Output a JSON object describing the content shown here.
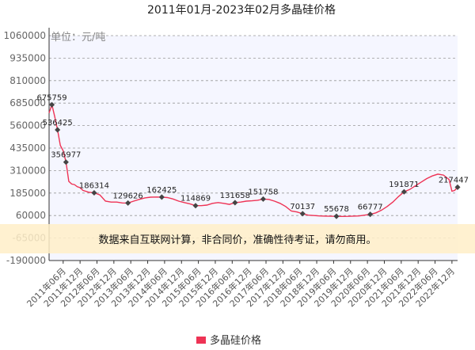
{
  "chart_data": {
    "type": "line",
    "title": "2011年01月-2023年02月多晶硅价格",
    "unit_label": "单位：元/吨",
    "ylabel": "",
    "xlabel": "",
    "yticks": [
      1060000,
      935000,
      810000,
      685000,
      560000,
      435000,
      310000,
      185000,
      60000,
      -65000,
      -190000
    ],
    "ytick_labels": [
      "1060000",
      "935000",
      "810000",
      "685000",
      "560000",
      "435000",
      "310000",
      "185000",
      "60000",
      "-65000",
      "-190000"
    ],
    "ylim": [
      -190000,
      1060000
    ],
    "grid": true,
    "x_ticks": [
      "2011年06月",
      "2011年12月",
      "2012年06月",
      "2012年12月",
      "2013年06月",
      "2013年12月",
      "2014年06月",
      "2014年12月",
      "2015年06月",
      "2015年12月",
      "2016年06月",
      "2016年12月",
      "2017年06月",
      "2017年12月",
      "2018年06月",
      "2018年12月",
      "2019年06月",
      "2019年12月",
      "2020年06月",
      "2020年12月",
      "2021年06月",
      "2021年12月",
      "2022年06月",
      "2022年12月"
    ],
    "series": [
      {
        "name": "多晶硅价格",
        "color": "#ee3355",
        "points": [
          [
            "2011-01",
            630000
          ],
          [
            "2011-02",
            675759
          ],
          [
            "2011-03",
            610000
          ],
          [
            "2011-04",
            536425
          ],
          [
            "2011-05",
            450000
          ],
          [
            "2011-06",
            420000
          ],
          [
            "2011-07",
            356977
          ],
          [
            "2011-08",
            250000
          ],
          [
            "2011-09",
            235000
          ],
          [
            "2011-10",
            232000
          ],
          [
            "2011-11",
            220000
          ],
          [
            "2011-12",
            215000
          ],
          [
            "2012-01",
            200000
          ],
          [
            "2012-03",
            190000
          ],
          [
            "2012-05",
            186314
          ],
          [
            "2012-07",
            175000
          ],
          [
            "2012-09",
            140000
          ],
          [
            "2012-11",
            135000
          ],
          [
            "2013-01",
            135000
          ],
          [
            "2013-03",
            130000
          ],
          [
            "2013-05",
            129626
          ],
          [
            "2013-07",
            140000
          ],
          [
            "2013-09",
            150000
          ],
          [
            "2013-11",
            158000
          ],
          [
            "2014-01",
            162000
          ],
          [
            "2014-03",
            163000
          ],
          [
            "2014-05",
            162425
          ],
          [
            "2014-07",
            160000
          ],
          [
            "2014-09",
            152000
          ],
          [
            "2014-11",
            140000
          ],
          [
            "2015-01",
            132000
          ],
          [
            "2015-03",
            125000
          ],
          [
            "2015-05",
            114869
          ],
          [
            "2015-07",
            115000
          ],
          [
            "2015-09",
            118000
          ],
          [
            "2015-11",
            128000
          ],
          [
            "2016-01",
            132000
          ],
          [
            "2016-03",
            128000
          ],
          [
            "2016-05",
            122000
          ],
          [
            "2016-07",
            131658
          ],
          [
            "2016-09",
            135000
          ],
          [
            "2016-11",
            140000
          ],
          [
            "2017-01",
            142000
          ],
          [
            "2017-03",
            145000
          ],
          [
            "2017-05",
            151758
          ],
          [
            "2017-07",
            150000
          ],
          [
            "2017-09",
            140000
          ],
          [
            "2017-11",
            128000
          ],
          [
            "2018-01",
            110000
          ],
          [
            "2018-03",
            85000
          ],
          [
            "2018-05",
            80000
          ],
          [
            "2018-07",
            70137
          ],
          [
            "2018-09",
            62000
          ],
          [
            "2018-11",
            60000
          ],
          [
            "2019-01",
            58000
          ],
          [
            "2019-03",
            57000
          ],
          [
            "2019-05",
            56000
          ],
          [
            "2019-07",
            55678
          ],
          [
            "2019-09",
            55000
          ],
          [
            "2019-11",
            55500
          ],
          [
            "2020-01",
            57000
          ],
          [
            "2020-03",
            58000
          ],
          [
            "2020-05",
            62000
          ],
          [
            "2020-07",
            66777
          ],
          [
            "2020-09",
            75000
          ],
          [
            "2020-11",
            90000
          ],
          [
            "2021-01",
            110000
          ],
          [
            "2021-03",
            135000
          ],
          [
            "2021-05",
            165000
          ],
          [
            "2021-07",
            191871
          ],
          [
            "2021-09",
            205000
          ],
          [
            "2021-11",
            225000
          ],
          [
            "2022-01",
            245000
          ],
          [
            "2022-03",
            265000
          ],
          [
            "2022-05",
            280000
          ],
          [
            "2022-07",
            290000
          ],
          [
            "2022-09",
            285000
          ],
          [
            "2022-11",
            260000
          ],
          [
            "2022-12",
            195000
          ],
          [
            "2023-01",
            200000
          ],
          [
            "2023-02",
            217447
          ]
        ],
        "labeled_points": [
          [
            "2011-02",
            675759,
            "675759"
          ],
          [
            "2011-04",
            536425,
            "536425"
          ],
          [
            "2011-07",
            356977,
            "356977"
          ],
          [
            "2012-05",
            186314,
            "186314"
          ],
          [
            "2013-05",
            129626,
            "129626"
          ],
          [
            "2014-05",
            162425,
            "162425"
          ],
          [
            "2015-05",
            114869,
            "114869"
          ],
          [
            "2016-07",
            131658,
            "131658"
          ],
          [
            "2017-05",
            151758,
            "151758"
          ],
          [
            "2018-07",
            70137,
            "70137"
          ],
          [
            "2019-07",
            55678,
            "55678"
          ],
          [
            "2020-07",
            66777,
            "66777"
          ],
          [
            "2021-07",
            191871,
            "191871"
          ],
          [
            "2023-02",
            217447,
            "217447"
          ]
        ]
      }
    ],
    "legend": {
      "position": "bottom",
      "label": "多晶硅价格"
    },
    "disclaimer": "数据来自互联网计算，非合同价，准确性待考证，请勿商用。"
  }
}
